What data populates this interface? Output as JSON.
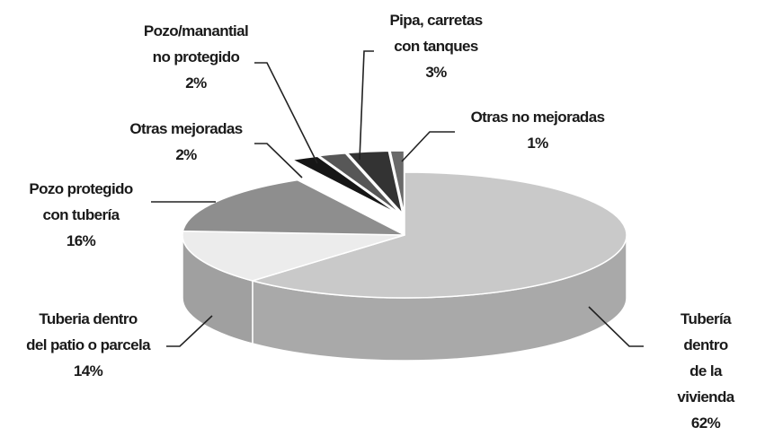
{
  "chart_data": {
    "type": "pie",
    "categories": [
      "Tubería dentro\nde la vivienda",
      "Tuberia dentro\ndel patio o parcela",
      "Pozo protegido\ncon tubería",
      "Otras mejoradas",
      "Pozo/manantial\nno protegido",
      "Pipa, carretas\ncon tanques",
      "Otras no mejoradas"
    ],
    "values": [
      62,
      14,
      16,
      2,
      2,
      3,
      1
    ],
    "value_labels": [
      "62%",
      "14%",
      "16%",
      "2%",
      "2%",
      "3%",
      "1%"
    ],
    "colors": [
      "#c9c9c9",
      "#ececec",
      "#8e8e8e",
      "#161616",
      "#575757",
      "#333333",
      "#6a6a6a"
    ]
  }
}
